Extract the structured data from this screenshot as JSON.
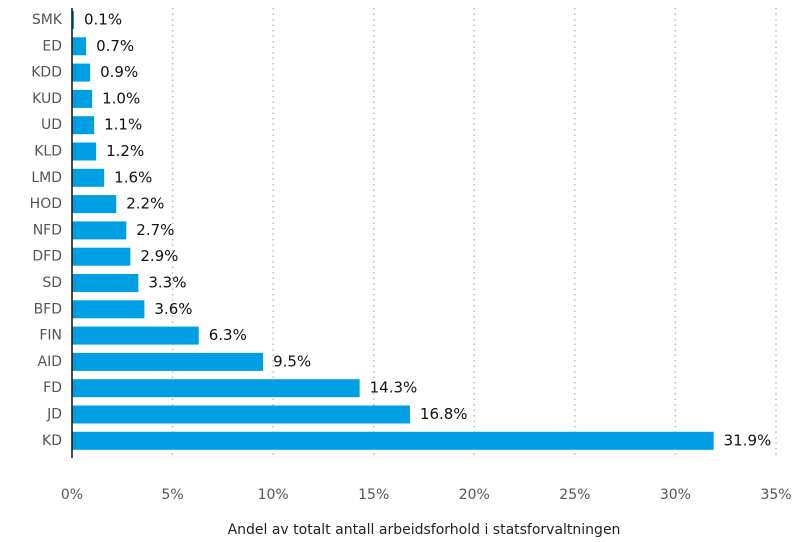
{
  "chart_data": {
    "type": "bar",
    "orientation": "horizontal",
    "x_label": "Andel av totalt antall arbeidsforhold i statsforvaltningen",
    "categories": [
      "SMK",
      "ED",
      "KDD",
      "KUD",
      "UD",
      "KLD",
      "LMD",
      "HOD",
      "NFD",
      "DFD",
      "SD",
      "BFD",
      "FIN",
      "AID",
      "FD",
      "JD",
      "KD"
    ],
    "values": [
      0.1,
      0.7,
      0.9,
      1.0,
      1.1,
      1.2,
      1.6,
      2.2,
      2.7,
      2.9,
      3.3,
      3.6,
      6.3,
      9.5,
      14.3,
      16.8,
      31.9
    ],
    "value_labels": [
      "0.1%",
      "0.7%",
      "0.9%",
      "1.0%",
      "1.1%",
      "1.2%",
      "1.6%",
      "2.2%",
      "2.7%",
      "2.9%",
      "3.3%",
      "3.6%",
      "6.3%",
      "9.5%",
      "14.3%",
      "16.8%",
      "31.9%"
    ],
    "color": "#009fe3",
    "xlim": [
      0,
      35
    ],
    "xticks": [
      {
        "value": 0,
        "label": "0%"
      },
      {
        "value": 5,
        "label": "5%"
      },
      {
        "value": 10,
        "label": "10%"
      },
      {
        "value": 15,
        "label": "15%"
      },
      {
        "value": 20,
        "label": "20%"
      },
      {
        "value": 25,
        "label": "25%"
      },
      {
        "value": 30,
        "label": "30%"
      },
      {
        "value": 35,
        "label": "35%"
      }
    ],
    "grid": true
  }
}
